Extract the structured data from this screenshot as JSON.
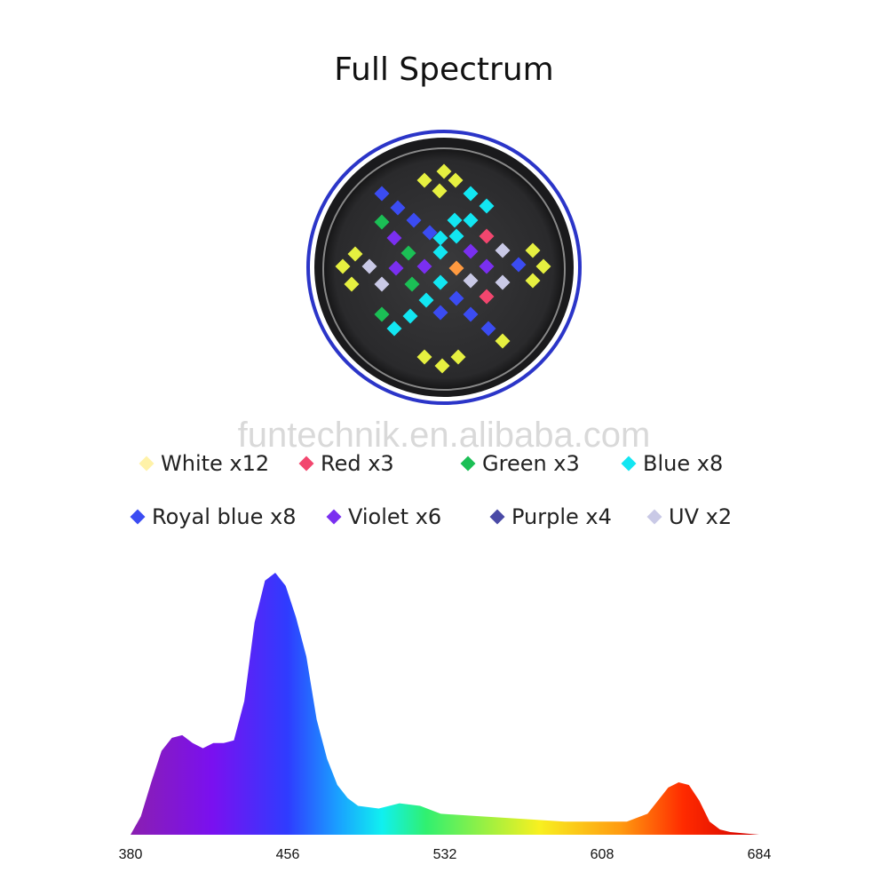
{
  "title": "Full Spectrum",
  "watermark": "funtechnik.en.alibaba.com",
  "legend": [
    {
      "label": "White x12",
      "color": "#fff2a8"
    },
    {
      "label": "Red x3",
      "color": "#f2466e"
    },
    {
      "label": "Green x3",
      "color": "#1bbf55"
    },
    {
      "label": "Blue x8",
      "color": "#12e6f2"
    },
    {
      "label": "Royal blue x8",
      "color": "#3b4cf2"
    },
    {
      "label": "Violet x6",
      "color": "#7a2ff0"
    },
    {
      "label": "Purple x4",
      "color": "#4a4aa6"
    },
    {
      "label": "UV x2",
      "color": "#c9c9e6"
    }
  ],
  "chart_data": {
    "type": "area",
    "x": [
      380,
      385,
      390,
      395,
      400,
      405,
      410,
      415,
      420,
      425,
      430,
      435,
      440,
      445,
      450,
      455,
      460,
      465,
      470,
      475,
      480,
      485,
      490,
      500,
      510,
      520,
      530,
      550,
      570,
      590,
      610,
      620,
      630,
      635,
      640,
      645,
      650,
      655,
      660,
      665,
      670,
      684
    ],
    "values": [
      0,
      7,
      20,
      32,
      37,
      38,
      35,
      33,
      35,
      35,
      36,
      51,
      81,
      97,
      100,
      95,
      83,
      68,
      44,
      29,
      19,
      14,
      11,
      10,
      12,
      11,
      8,
      7,
      6,
      5,
      5,
      5,
      8,
      13,
      18,
      20,
      19,
      13,
      5,
      2,
      1,
      0
    ],
    "xlim": [
      380,
      684
    ],
    "ylim": [
      0,
      100
    ],
    "xticks": [
      380,
      456,
      532,
      608,
      684
    ]
  }
}
